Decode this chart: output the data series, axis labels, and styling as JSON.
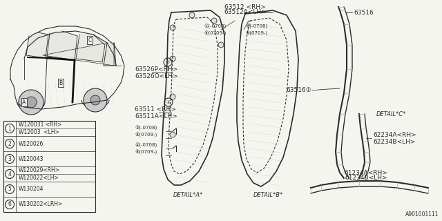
{
  "bg_color": "#f0f0f0",
  "line_color": "#333333",
  "parts_table": [
    [
      "1",
      "W120031 <RH>",
      "W12003  <LH>"
    ],
    [
      "2",
      "W120026",
      ""
    ],
    [
      "3",
      "W120043",
      ""
    ],
    [
      "4",
      "W120029<RH>",
      "W120022<LH>"
    ],
    [
      "5",
      "W130204",
      ""
    ],
    [
      "6",
      "W130202<LRH>",
      ""
    ]
  ]
}
